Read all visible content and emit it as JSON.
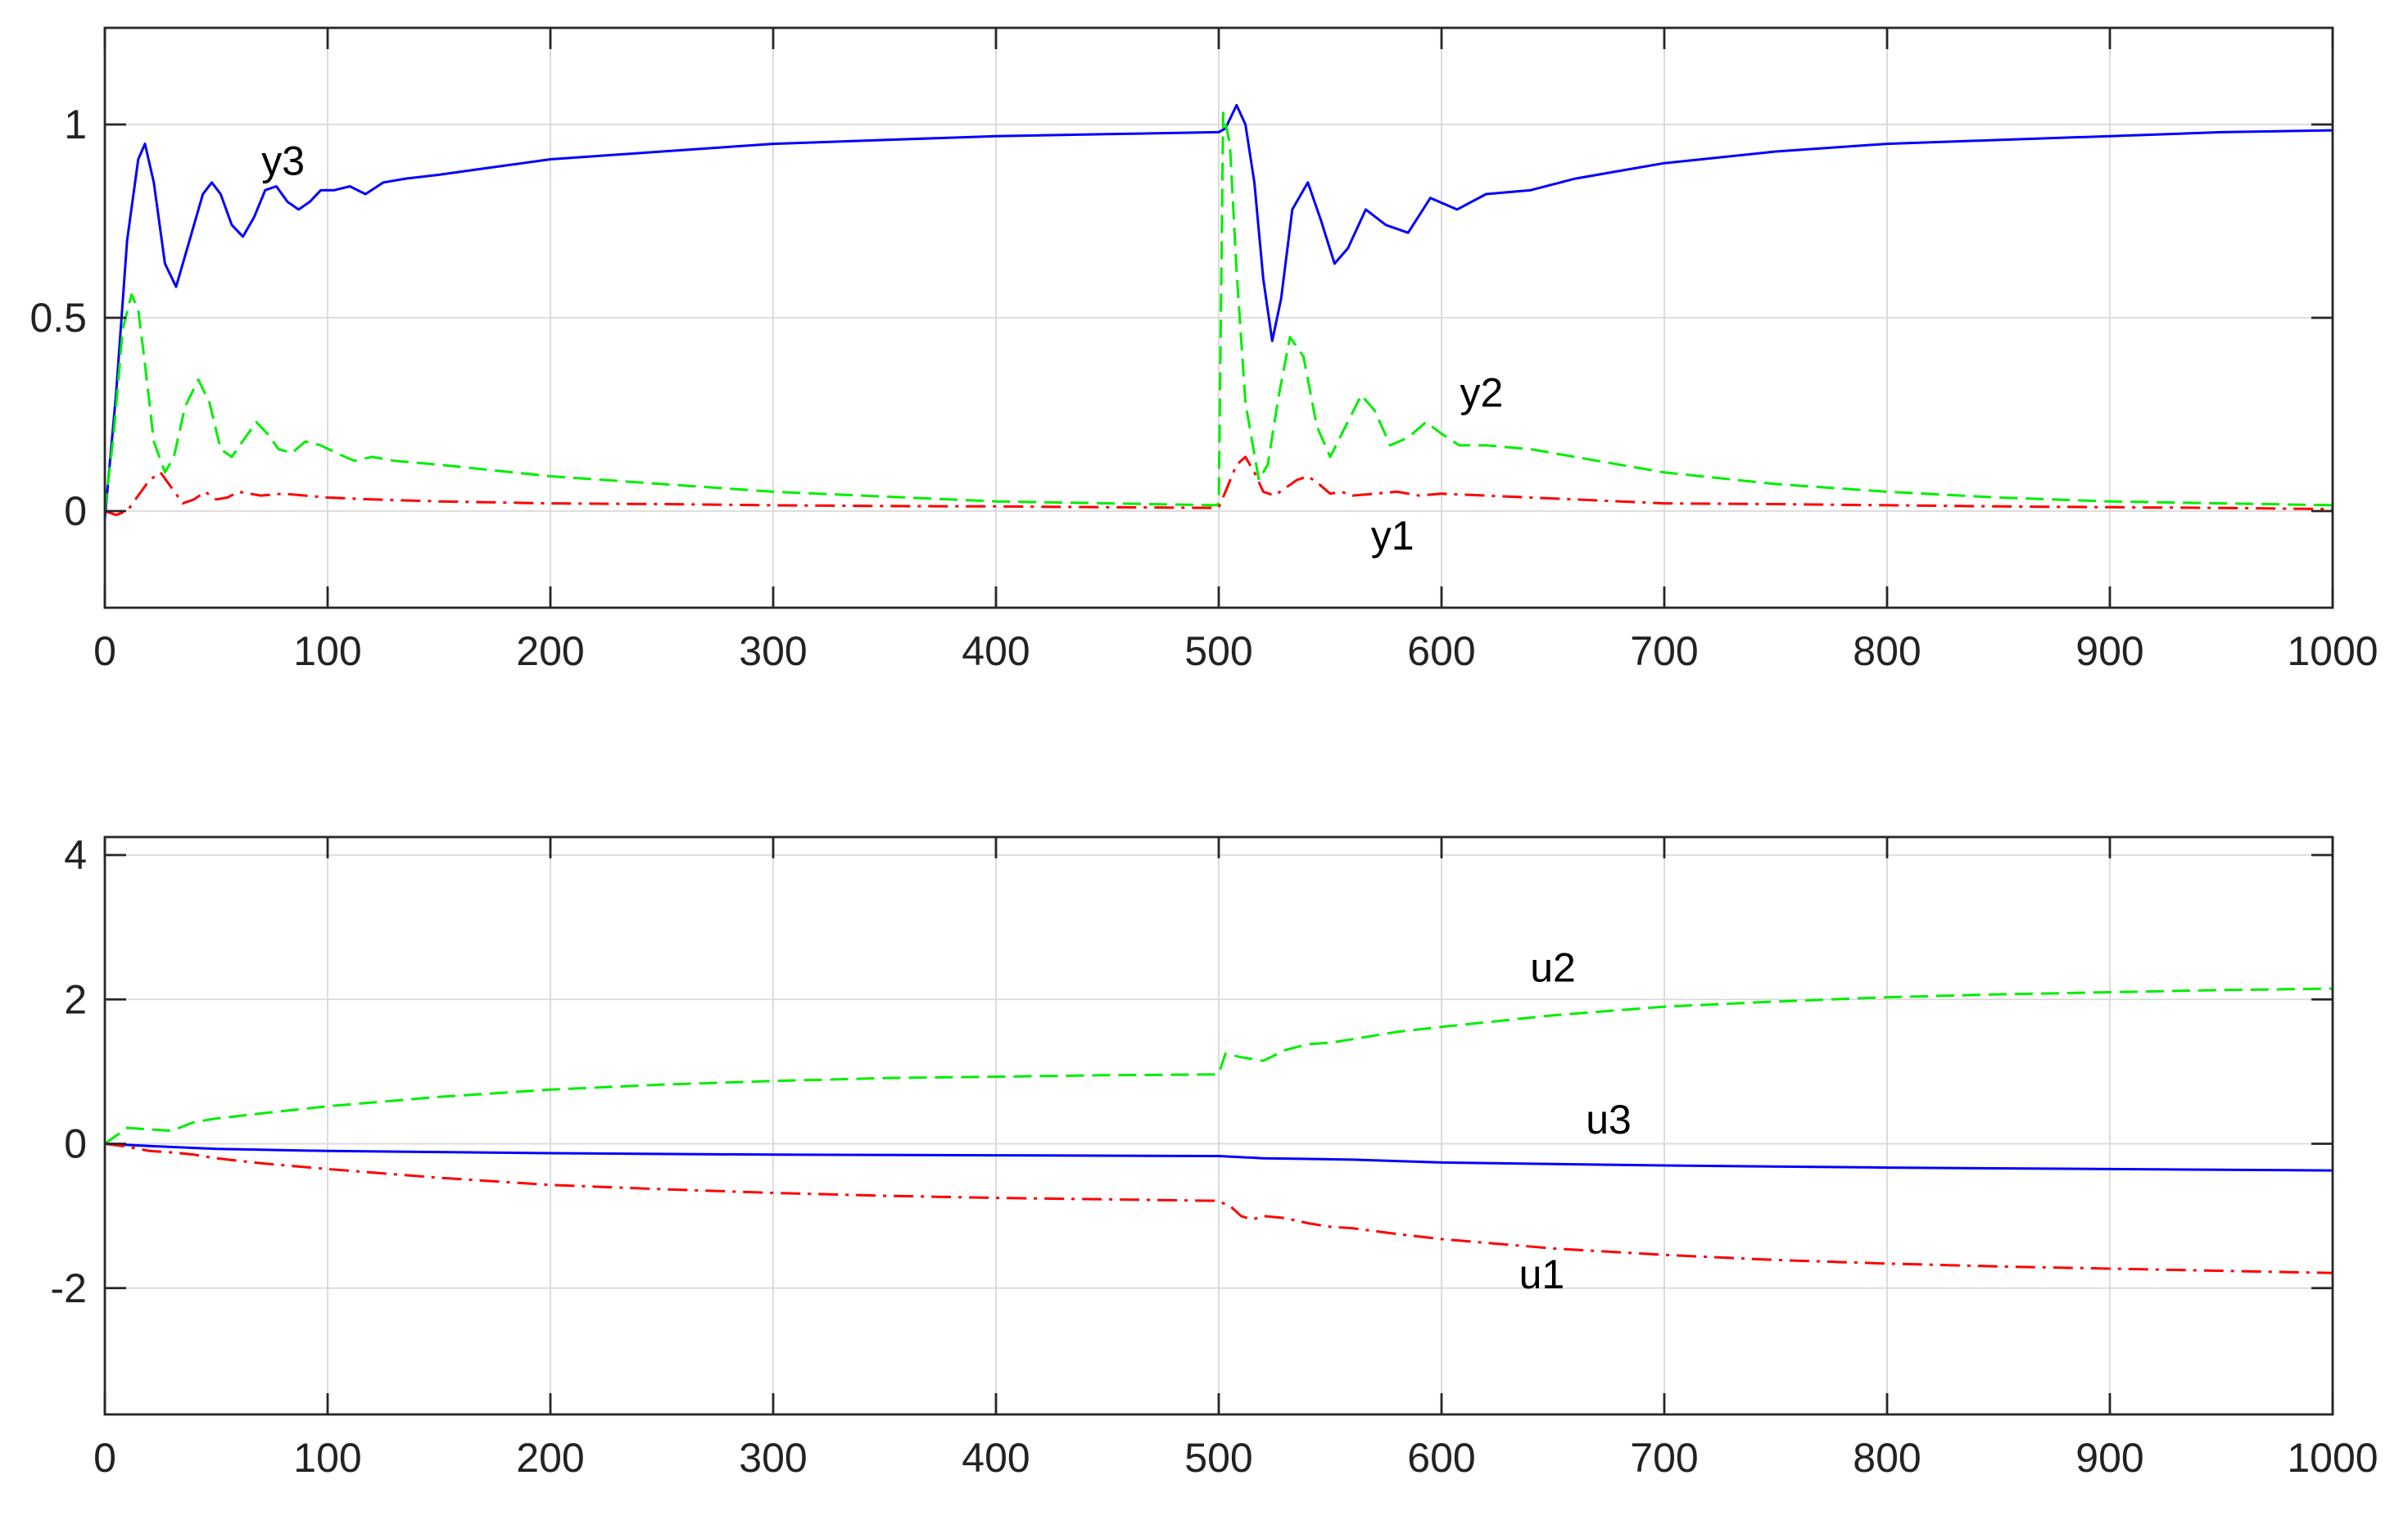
{
  "chart_data": [
    {
      "type": "line",
      "title": "",
      "xlabel": "",
      "ylabel": "",
      "xlim": [
        0,
        1000
      ],
      "ylim": [
        -0.25,
        1.25
      ],
      "xticks": [
        0,
        100,
        200,
        300,
        400,
        500,
        600,
        700,
        800,
        900,
        1000
      ],
      "xtick_labels": [
        "0",
        "100",
        "200",
        "300",
        "400",
        "500",
        "600",
        "700",
        "800",
        "900",
        "1000"
      ],
      "yticks": [
        0,
        0.5,
        1
      ],
      "ytick_labels": [
        "0",
        "0.5",
        "1"
      ],
      "grid": true,
      "legend": "none",
      "series": [
        {
          "name": "y3",
          "color": "#0000ff",
          "style": "solid",
          "x": [
            0,
            5,
            10,
            15,
            18,
            22,
            27,
            32,
            38,
            44,
            48,
            52,
            57,
            62,
            67,
            72,
            77,
            82,
            87,
            92,
            97,
            103,
            110,
            117,
            125,
            135,
            150,
            175,
            200,
            250,
            300,
            350,
            400,
            450,
            499,
            500,
            503,
            508,
            512,
            516,
            520,
            524,
            528,
            533,
            540,
            546,
            552,
            558,
            566,
            575,
            585,
            595,
            607,
            620,
            640,
            660,
            680,
            700,
            750,
            800,
            850,
            900,
            950,
            1000
          ],
          "y": [
            -0.02,
            0.3,
            0.7,
            0.91,
            0.95,
            0.85,
            0.64,
            0.58,
            0.7,
            0.82,
            0.85,
            0.82,
            0.74,
            0.71,
            0.76,
            0.83,
            0.84,
            0.8,
            0.78,
            0.8,
            0.83,
            0.83,
            0.84,
            0.82,
            0.85,
            0.86,
            0.87,
            0.89,
            0.91,
            0.93,
            0.95,
            0.96,
            0.97,
            0.975,
            0.98,
            0.98,
            0.99,
            1.05,
            1.0,
            0.85,
            0.6,
            0.44,
            0.55,
            0.78,
            0.85,
            0.75,
            0.64,
            0.68,
            0.78,
            0.74,
            0.72,
            0.81,
            0.78,
            0.82,
            0.83,
            0.86,
            0.88,
            0.9,
            0.93,
            0.95,
            0.96,
            0.97,
            0.98,
            0.985
          ]
        },
        {
          "name": "y2",
          "color": "#00ee00",
          "style": "dashed",
          "x": [
            0,
            4,
            8,
            12,
            15,
            18,
            22,
            27,
            31,
            36,
            42,
            47,
            52,
            57,
            63,
            68,
            73,
            78,
            84,
            90,
            97,
            104,
            112,
            120,
            130,
            150,
            200,
            300,
            400,
            499,
            500,
            502,
            505,
            508,
            512,
            518,
            522,
            527,
            532,
            538,
            544,
            550,
            557,
            564,
            570,
            577,
            585,
            593,
            600,
            608,
            620,
            640,
            660,
            680,
            700,
            750,
            800,
            850,
            900,
            950,
            1000
          ],
          "y": [
            0,
            0.2,
            0.47,
            0.56,
            0.52,
            0.38,
            0.18,
            0.1,
            0.14,
            0.27,
            0.34,
            0.28,
            0.16,
            0.14,
            0.19,
            0.23,
            0.2,
            0.16,
            0.15,
            0.18,
            0.17,
            0.15,
            0.13,
            0.14,
            0.13,
            0.12,
            0.09,
            0.05,
            0.025,
            0.015,
            0.02,
            1.03,
            0.95,
            0.62,
            0.28,
            0.08,
            0.12,
            0.3,
            0.45,
            0.4,
            0.22,
            0.14,
            0.22,
            0.3,
            0.26,
            0.17,
            0.19,
            0.23,
            0.2,
            0.17,
            0.17,
            0.16,
            0.14,
            0.12,
            0.1,
            0.07,
            0.05,
            0.035,
            0.025,
            0.02,
            0.015
          ]
        },
        {
          "name": "y1",
          "color": "#ff0000",
          "style": "dashdot",
          "x": [
            0,
            5,
            10,
            15,
            20,
            25,
            30,
            35,
            40,
            45,
            50,
            55,
            60,
            70,
            80,
            90,
            100,
            120,
            150,
            200,
            250,
            300,
            350,
            400,
            450,
            499,
            500,
            503,
            508,
            512,
            516,
            520,
            525,
            530,
            535,
            540,
            545,
            550,
            555,
            560,
            570,
            580,
            590,
            600,
            620,
            640,
            660,
            680,
            700,
            750,
            800,
            850,
            900,
            950,
            1000
          ],
          "y": [
            0,
            -0.01,
            0.0,
            0.04,
            0.08,
            0.1,
            0.06,
            0.02,
            0.03,
            0.05,
            0.03,
            0.035,
            0.05,
            0.04,
            0.045,
            0.04,
            0.035,
            0.03,
            0.025,
            0.02,
            0.018,
            0.015,
            0.013,
            0.012,
            0.01,
            0.008,
            0.01,
            0.05,
            0.12,
            0.14,
            0.1,
            0.05,
            0.04,
            0.06,
            0.08,
            0.09,
            0.07,
            0.045,
            0.05,
            0.04,
            0.045,
            0.05,
            0.04,
            0.045,
            0.04,
            0.035,
            0.03,
            0.025,
            0.02,
            0.018,
            0.015,
            0.012,
            0.01,
            0.008,
            0.005
          ]
        }
      ],
      "annotations": [
        {
          "text": "y3",
          "x": 80,
          "y": 0.87
        },
        {
          "text": "y2",
          "x": 618,
          "y": 0.27
        },
        {
          "text": "y1",
          "x": 578,
          "y": -0.1
        }
      ]
    },
    {
      "type": "line",
      "title": "",
      "xlabel": "",
      "ylabel": "",
      "xlim": [
        0,
        1000
      ],
      "ylim": [
        -3.75,
        4.25
      ],
      "xticks": [
        0,
        100,
        200,
        300,
        400,
        500,
        600,
        700,
        800,
        900,
        1000
      ],
      "xtick_labels": [
        "0",
        "100",
        "200",
        "300",
        "400",
        "500",
        "600",
        "700",
        "800",
        "900",
        "1000"
      ],
      "yticks": [
        -2,
        0,
        2,
        4
      ],
      "ytick_labels": [
        "-2",
        "0",
        "2",
        "4"
      ],
      "grid": true,
      "legend": "none",
      "series": [
        {
          "name": "u2",
          "color": "#00ee00",
          "style": "dashed",
          "x": [
            0,
            10,
            20,
            30,
            40,
            50,
            70,
            100,
            150,
            200,
            250,
            300,
            350,
            400,
            450,
            499,
            500,
            503,
            510,
            520,
            530,
            540,
            550,
            560,
            580,
            600,
            650,
            700,
            750,
            800,
            850,
            900,
            950,
            1000
          ],
          "y": [
            0,
            0.22,
            0.2,
            0.18,
            0.3,
            0.35,
            0.42,
            0.52,
            0.65,
            0.75,
            0.82,
            0.87,
            0.91,
            0.93,
            0.95,
            0.96,
            0.97,
            1.25,
            1.2,
            1.15,
            1.3,
            1.38,
            1.4,
            1.45,
            1.55,
            1.62,
            1.78,
            1.9,
            1.97,
            2.03,
            2.07,
            2.1,
            2.13,
            2.15
          ]
        },
        {
          "name": "u3",
          "color": "#0000ff",
          "style": "solid",
          "x": [
            0,
            20,
            50,
            100,
            200,
            300,
            400,
            499,
            500,
            520,
            540,
            560,
            600,
            700,
            800,
            900,
            1000
          ],
          "y": [
            0,
            -0.03,
            -0.07,
            -0.1,
            -0.13,
            -0.15,
            -0.16,
            -0.17,
            -0.17,
            -0.2,
            -0.21,
            -0.22,
            -0.26,
            -0.3,
            -0.33,
            -0.35,
            -0.37
          ]
        },
        {
          "name": "u1",
          "color": "#ff0000",
          "style": "dashdot",
          "x": [
            0,
            10,
            20,
            30,
            40,
            50,
            70,
            100,
            150,
            200,
            250,
            300,
            350,
            400,
            450,
            499,
            500,
            505,
            510,
            515,
            520,
            530,
            540,
            550,
            560,
            580,
            600,
            650,
            700,
            750,
            800,
            850,
            900,
            950,
            1000
          ],
          "y": [
            0,
            -0.04,
            -0.1,
            -0.12,
            -0.15,
            -0.2,
            -0.27,
            -0.35,
            -0.47,
            -0.57,
            -0.63,
            -0.68,
            -0.72,
            -0.75,
            -0.77,
            -0.79,
            -0.8,
            -0.86,
            -1.0,
            -1.05,
            -1.0,
            -1.03,
            -1.1,
            -1.15,
            -1.17,
            -1.25,
            -1.32,
            -1.45,
            -1.54,
            -1.61,
            -1.66,
            -1.7,
            -1.73,
            -1.76,
            -1.79
          ]
        }
      ],
      "annotations": [
        {
          "text": "u2",
          "x": 650,
          "y": 2.25
        },
        {
          "text": "u3",
          "x": 675,
          "y": 0.14
        },
        {
          "text": "u1",
          "x": 645,
          "y": -2.0
        }
      ]
    }
  ]
}
